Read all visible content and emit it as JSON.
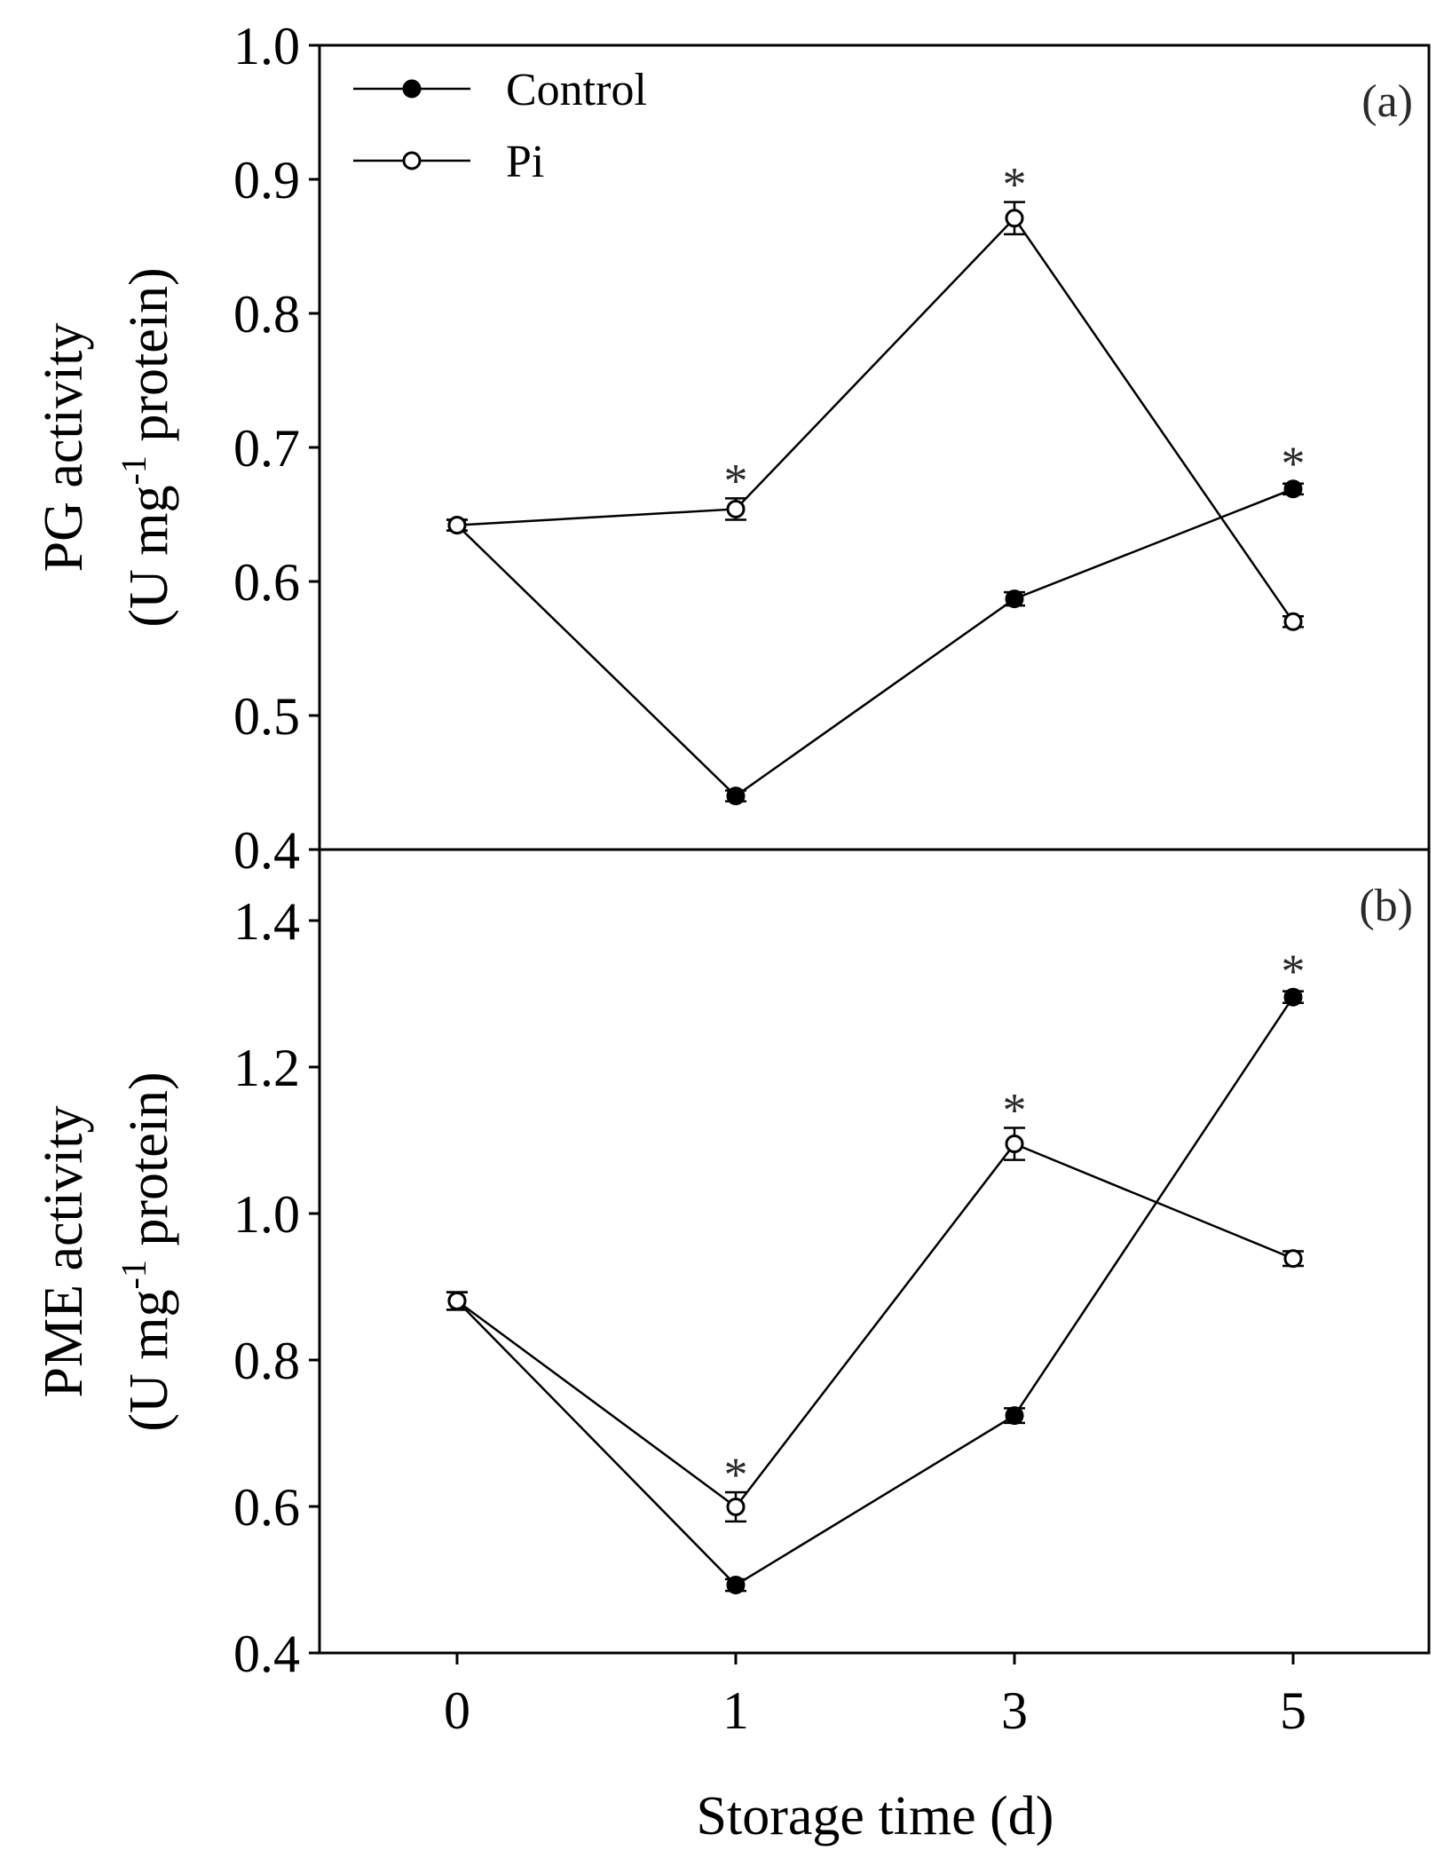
{
  "chart_data": [
    {
      "type": "line",
      "panel_label": "(a)",
      "ylabel_line1": "PG activity",
      "ylabel_line2_pre": "(U mg",
      "ylabel_sup": "-1",
      "ylabel_line2_post": " protein)",
      "ylim": [
        0.4,
        1.0
      ],
      "yticks": [
        "0.4",
        "0.5",
        "0.6",
        "0.7",
        "0.8",
        "0.9",
        "1.0"
      ],
      "categories": [
        "0",
        "1",
        "3",
        "5"
      ],
      "series": [
        {
          "name": "Control",
          "marker": "filled-circle",
          "values": [
            0.642,
            0.44,
            0.587,
            0.669
          ],
          "errors": [
            0.004,
            0.004,
            0.005,
            0.004
          ],
          "significant": [
            false,
            false,
            false,
            true
          ]
        },
        {
          "name": "Pi",
          "marker": "open-circle",
          "values": [
            0.642,
            0.654,
            0.871,
            0.57
          ],
          "errors": [
            0.004,
            0.008,
            0.012,
            0.004
          ],
          "significant": [
            false,
            true,
            true,
            false
          ]
        }
      ],
      "legend": [
        "Control",
        "Pi"
      ]
    },
    {
      "type": "line",
      "panel_label": "(b)",
      "ylabel_line1": "PME activity",
      "ylabel_line2_pre": "(U mg",
      "ylabel_sup": "-1",
      "ylabel_line2_post": " protein)",
      "ylim": [
        0.4,
        1.5
      ],
      "yticks": [
        "0.4",
        "0.6",
        "0.8",
        "1.0",
        "1.2",
        "1.4"
      ],
      "categories": [
        "0",
        "1",
        "3",
        "5"
      ],
      "xlabel": "Storage time (d)",
      "series": [
        {
          "name": "Control",
          "marker": "filled-circle",
          "values": [
            0.882,
            0.493,
            0.725,
            1.298
          ],
          "errors": [
            0.012,
            0.008,
            0.01,
            0.008
          ],
          "significant": [
            false,
            false,
            false,
            true
          ]
        },
        {
          "name": "Pi",
          "marker": "open-circle",
          "values": [
            0.882,
            0.6,
            1.097,
            0.94
          ],
          "errors": [
            0.012,
            0.02,
            0.022,
            0.01
          ],
          "significant": [
            false,
            true,
            true,
            false
          ]
        }
      ]
    }
  ],
  "significance_marker": "*"
}
